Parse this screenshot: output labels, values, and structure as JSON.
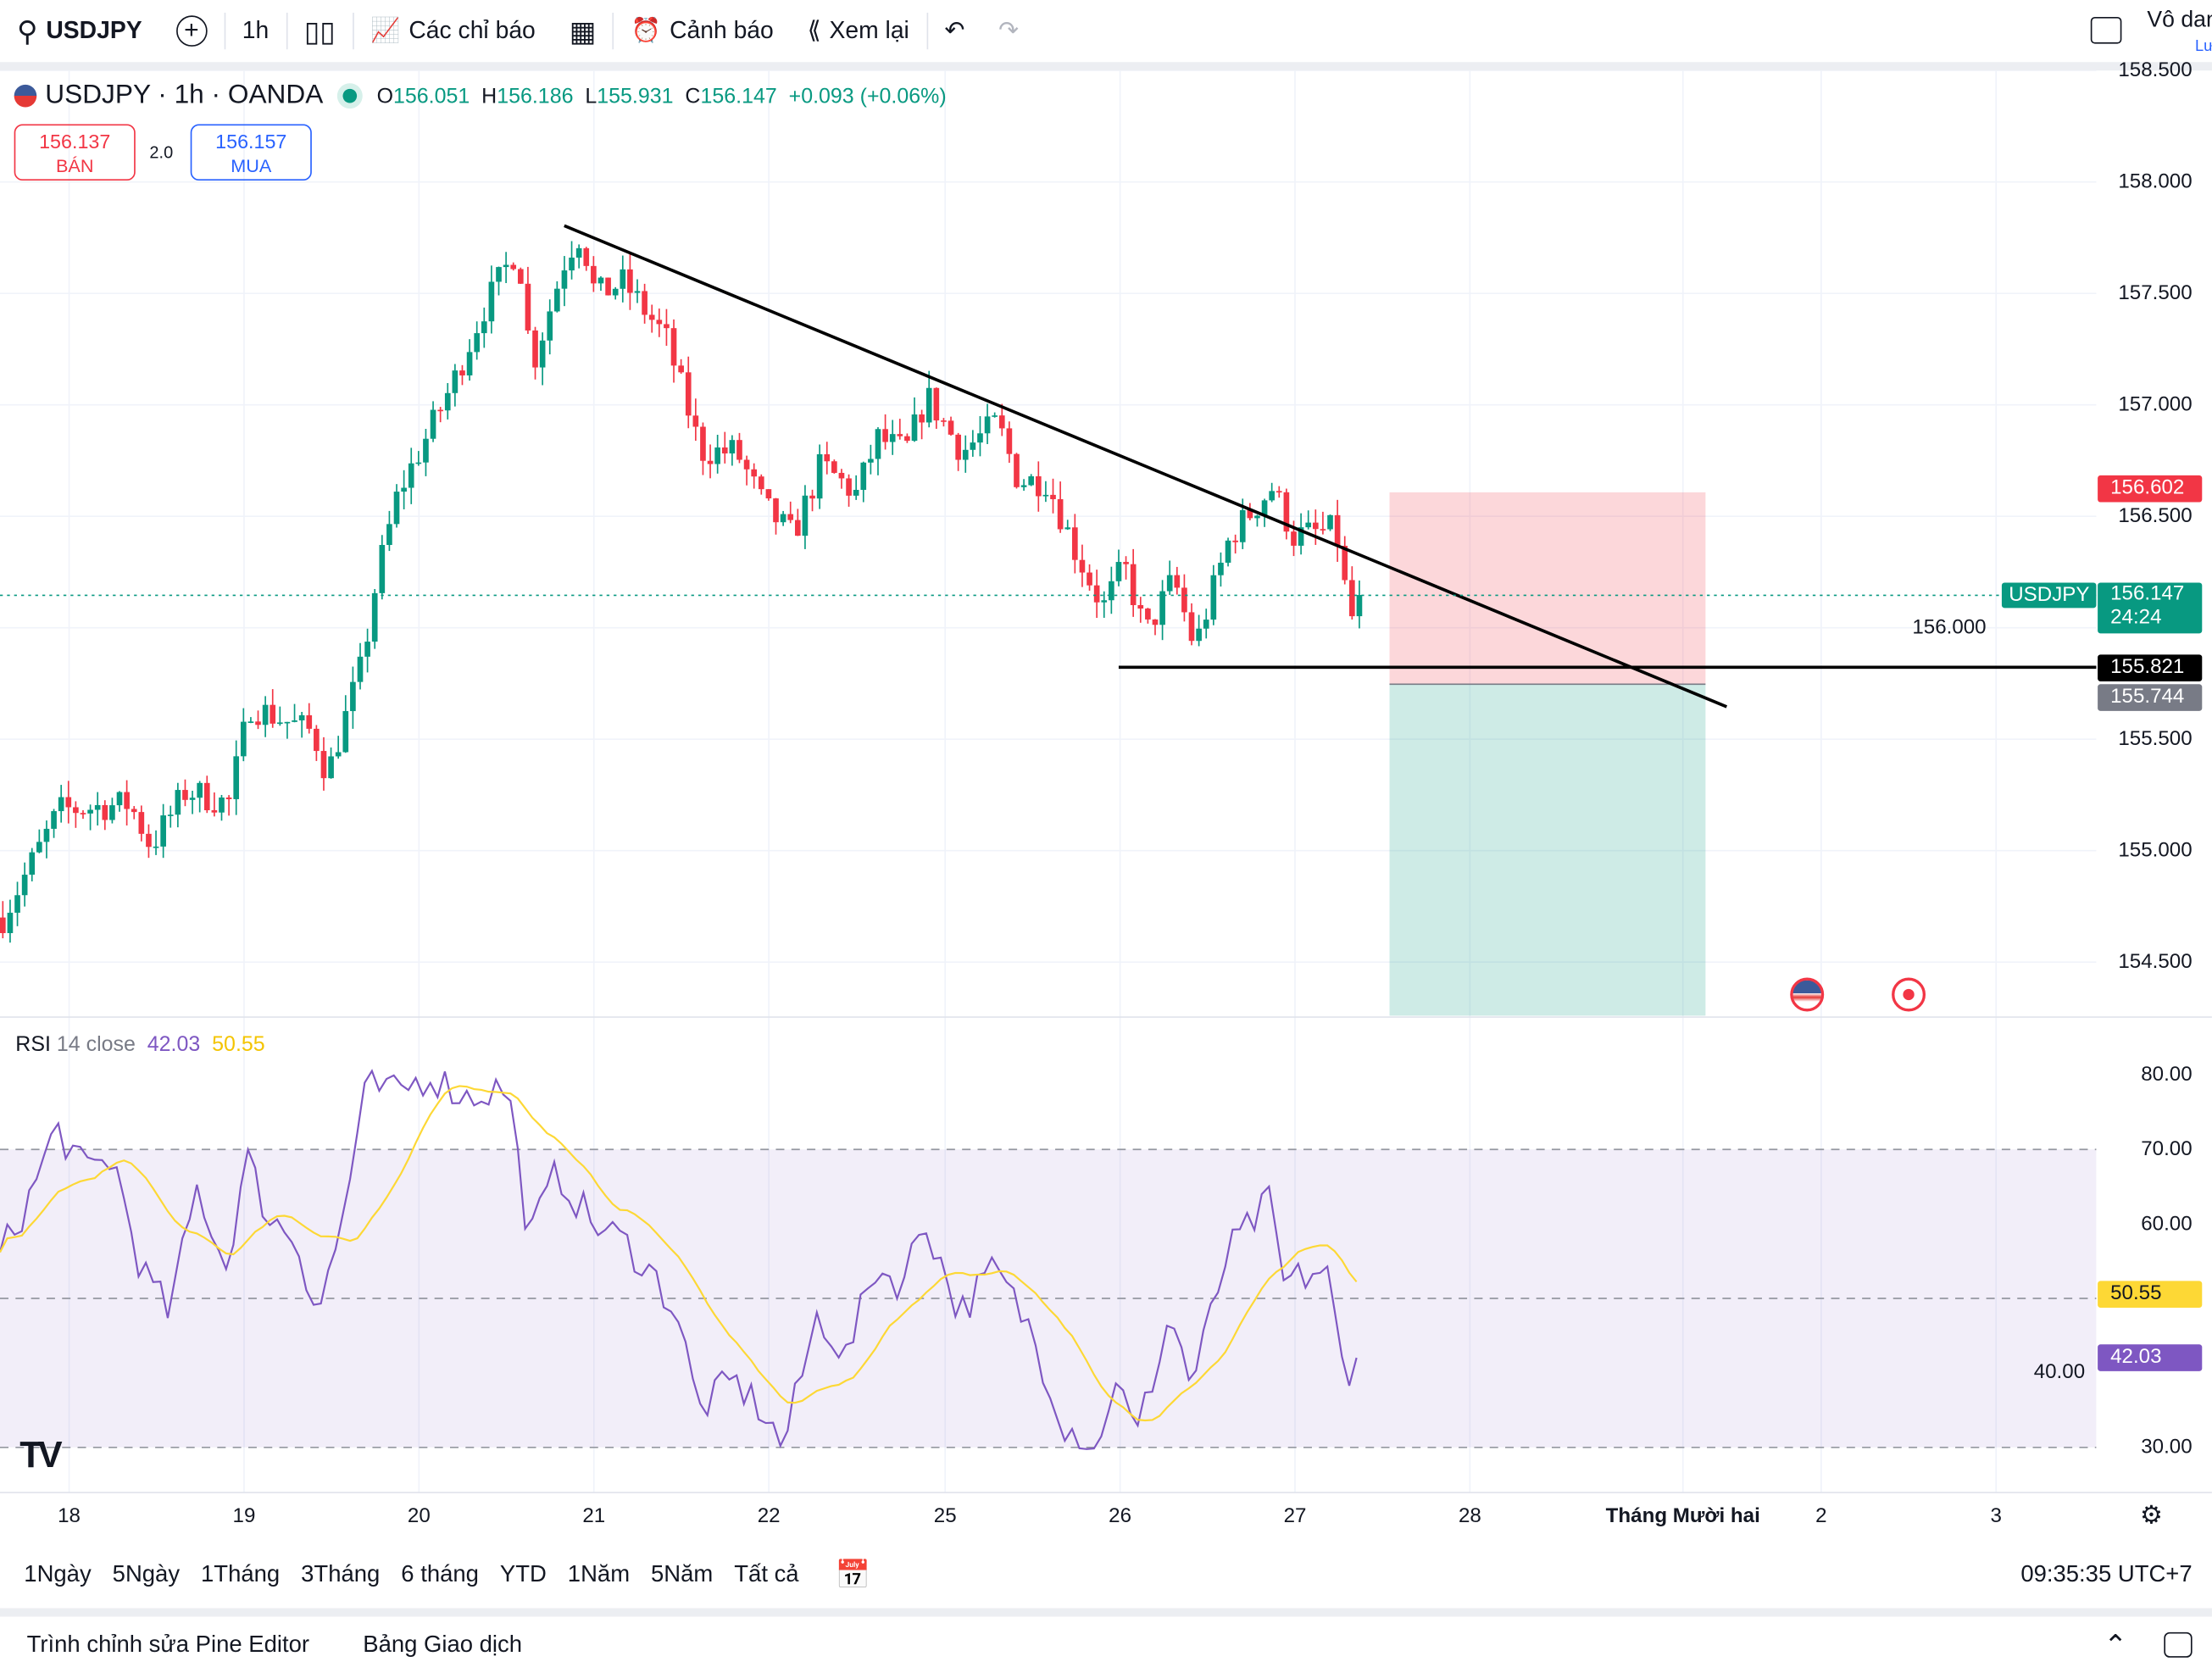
{
  "toolbar": {
    "symbol": "USDJPY",
    "interval": "1h",
    "indicators": "Các chỉ báo",
    "alerts": "Cảnh báo",
    "replay": "Xem lại",
    "layout_name": "Vô danh",
    "save": "Lưu"
  },
  "legend": {
    "title": "USDJPY · 1h · OANDA",
    "o_label": "O",
    "o": "156.051",
    "h_label": "H",
    "h": "156.186",
    "l_label": "L",
    "l": "155.931",
    "c_label": "C",
    "c": "156.147",
    "change": "+0.093 (+0.06%)"
  },
  "trade": {
    "sell_price": "156.137",
    "sell_label": "BÁN",
    "spread": "2.0",
    "buy_price": "156.157",
    "buy_label": "MUA"
  },
  "price_axis": [
    "158.500",
    "158.000",
    "157.500",
    "157.000",
    "156.500",
    "156.000",
    "155.500",
    "155.000",
    "154.500"
  ],
  "price_tags": {
    "stop": "156.602",
    "symbol": "USDJPY",
    "last": "156.147",
    "countdown": "24:24",
    "line": "155.821",
    "entry": "155.744"
  },
  "rsi": {
    "label": "RSI",
    "params": "14 close",
    "value": "42.03",
    "ma": "50.55",
    "axis": [
      "80.00",
      "70.00",
      "60.00",
      "40.00",
      "30.00"
    ]
  },
  "dates": [
    "18",
    "19",
    "20",
    "21",
    "22",
    "25",
    "26",
    "27",
    "28",
    "Tháng Mười hai",
    "2",
    "3"
  ],
  "ranges": [
    "1Ngày",
    "5Ngày",
    "1Tháng",
    "3Tháng",
    "6 tháng",
    "YTD",
    "1Năm",
    "5Năm",
    "Tất cả"
  ],
  "clock": "09:35:35 UTC+7",
  "panels": {
    "pine": "Trình chỉnh sửa Pine Editor",
    "trading": "Bảng Giao dịch"
  },
  "colors": {
    "up": "#089981",
    "down": "#f23645",
    "rsi": "#7e57c2",
    "rsi_ma": "#fdd835"
  },
  "price_path": [
    [
      0,
      154.7
    ],
    [
      40,
      155.18
    ],
    [
      90,
      155.21
    ],
    [
      105,
      155.02
    ],
    [
      130,
      155.27
    ],
    [
      160,
      155.21
    ],
    [
      175,
      155.65
    ],
    [
      220,
      155.53
    ],
    [
      230,
      155.34
    ],
    [
      255,
      155.84
    ],
    [
      265,
      156.22
    ],
    [
      280,
      156.6
    ],
    [
      300,
      156.85
    ],
    [
      320,
      157.11
    ],
    [
      340,
      157.42
    ],
    [
      365,
      157.71
    ],
    [
      375,
      157.17
    ],
    [
      400,
      157.68
    ],
    [
      410,
      157.77
    ],
    [
      420,
      157.49
    ],
    [
      440,
      157.55
    ],
    [
      470,
      157.3
    ],
    [
      495,
      156.79
    ],
    [
      520,
      156.79
    ],
    [
      540,
      156.54
    ],
    [
      560,
      156.41
    ],
    [
      580,
      156.73
    ],
    [
      605,
      156.6
    ],
    [
      620,
      156.85
    ],
    [
      640,
      156.79
    ],
    [
      655,
      157.04
    ],
    [
      680,
      156.79
    ],
    [
      705,
      156.92
    ],
    [
      720,
      156.66
    ],
    [
      740,
      156.66
    ],
    [
      760,
      156.35
    ],
    [
      780,
      156.09
    ],
    [
      795,
      156.28
    ],
    [
      810,
      155.97
    ],
    [
      830,
      156.22
    ],
    [
      845,
      155.91
    ],
    [
      870,
      156.41
    ],
    [
      900,
      156.63
    ],
    [
      915,
      156.41
    ],
    [
      945,
      156.44
    ],
    [
      955,
      156.03
    ],
    [
      965,
      156.147
    ]
  ],
  "rsi_path": [
    [
      0,
      55.8
    ],
    [
      20,
      63
    ],
    [
      40,
      73
    ],
    [
      60,
      67
    ],
    [
      80,
      69
    ],
    [
      100,
      54
    ],
    [
      120,
      48
    ],
    [
      140,
      65
    ],
    [
      160,
      54
    ],
    [
      175,
      69
    ],
    [
      190,
      61
    ],
    [
      210,
      58
    ],
    [
      225,
      48
    ],
    [
      240,
      58
    ],
    [
      260,
      78.5
    ],
    [
      280,
      77.5
    ],
    [
      305,
      80
    ],
    [
      330,
      77
    ],
    [
      360,
      78.5
    ],
    [
      375,
      58
    ],
    [
      395,
      67
    ],
    [
      420,
      60
    ],
    [
      440,
      58
    ],
    [
      460,
      54
    ],
    [
      480,
      48
    ],
    [
      495,
      35
    ],
    [
      520,
      39
    ],
    [
      540,
      35
    ],
    [
      555,
      30
    ],
    [
      580,
      48
    ],
    [
      600,
      42
    ],
    [
      620,
      54
    ],
    [
      640,
      52
    ],
    [
      655,
      61
    ],
    [
      680,
      48
    ],
    [
      705,
      54
    ],
    [
      730,
      46
    ],
    [
      755,
      33
    ],
    [
      780,
      30
    ],
    [
      790,
      40.5
    ],
    [
      805,
      31
    ],
    [
      830,
      48
    ],
    [
      845,
      38
    ],
    [
      870,
      56
    ],
    [
      900,
      63
    ],
    [
      910,
      52
    ],
    [
      940,
      54
    ],
    [
      955,
      37
    ],
    [
      965,
      42
    ]
  ]
}
